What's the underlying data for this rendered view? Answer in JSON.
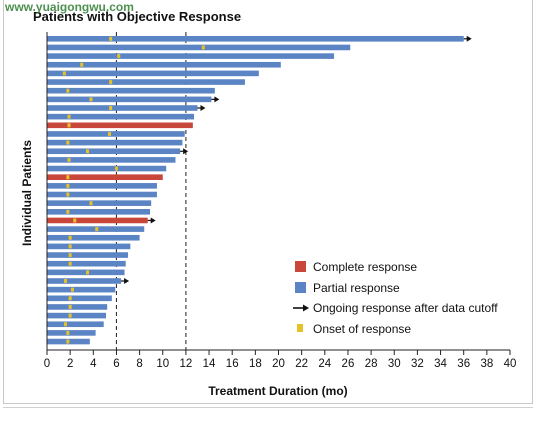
{
  "watermark": "www.yuaigongwu.com",
  "colors": {
    "complete": "#c8473a",
    "partial": "#5b84c4",
    "onset": "#e6c229",
    "axis": "#222222",
    "arrow": "#111111"
  },
  "legend": {
    "complete": "Complete response",
    "partial": "Partial response",
    "ongoing": "Ongoing response after data cutoff",
    "onset": "Onset of response"
  },
  "chart_data": {
    "type": "bar",
    "orientation": "horizontal",
    "title": "Patients with Objective Response",
    "xlabel": "Treatment Duration (mo)",
    "ylabel": "Individual Patients",
    "xlim": [
      0,
      40
    ],
    "xticks": [
      0,
      2,
      4,
      6,
      8,
      10,
      12,
      14,
      16,
      18,
      20,
      22,
      24,
      26,
      28,
      30,
      32,
      34,
      36,
      38,
      40
    ],
    "reference_lines_x": [
      6,
      12
    ],
    "patients": [
      {
        "duration": 36.0,
        "type": "partial",
        "onset": 5.5,
        "ongoing": true
      },
      {
        "duration": 26.2,
        "type": "partial",
        "onset": 13.5,
        "ongoing": false
      },
      {
        "duration": 24.8,
        "type": "partial",
        "onset": 6.2,
        "ongoing": false
      },
      {
        "duration": 20.2,
        "type": "partial",
        "onset": 3.0,
        "ongoing": false
      },
      {
        "duration": 18.3,
        "type": "partial",
        "onset": 1.5,
        "ongoing": false
      },
      {
        "duration": 17.1,
        "type": "partial",
        "onset": 5.5,
        "ongoing": false
      },
      {
        "duration": 14.5,
        "type": "partial",
        "onset": 1.8,
        "ongoing": false
      },
      {
        "duration": 14.2,
        "type": "partial",
        "onset": 3.8,
        "ongoing": true
      },
      {
        "duration": 13.0,
        "type": "partial",
        "onset": 5.5,
        "ongoing": true
      },
      {
        "duration": 12.7,
        "type": "partial",
        "onset": 1.9,
        "ongoing": false
      },
      {
        "duration": 12.6,
        "type": "complete",
        "onset": 1.9,
        "ongoing": false
      },
      {
        "duration": 11.9,
        "type": "partial",
        "onset": 5.4,
        "ongoing": false
      },
      {
        "duration": 11.7,
        "type": "partial",
        "onset": 1.8,
        "ongoing": false
      },
      {
        "duration": 11.5,
        "type": "partial",
        "onset": 3.5,
        "ongoing": true
      },
      {
        "duration": 11.1,
        "type": "partial",
        "onset": 1.9,
        "ongoing": false
      },
      {
        "duration": 10.3,
        "type": "partial",
        "onset": 6.0,
        "ongoing": false
      },
      {
        "duration": 10.0,
        "type": "complete",
        "onset": 1.8,
        "ongoing": false
      },
      {
        "duration": 9.5,
        "type": "partial",
        "onset": 1.8,
        "ongoing": false
      },
      {
        "duration": 9.5,
        "type": "partial",
        "onset": 1.8,
        "ongoing": false
      },
      {
        "duration": 9.0,
        "type": "partial",
        "onset": 3.8,
        "ongoing": false
      },
      {
        "duration": 8.9,
        "type": "partial",
        "onset": 1.8,
        "ongoing": false
      },
      {
        "duration": 8.7,
        "type": "complete",
        "onset": 2.4,
        "ongoing": true
      },
      {
        "duration": 8.4,
        "type": "partial",
        "onset": 4.3,
        "ongoing": false
      },
      {
        "duration": 8.0,
        "type": "partial",
        "onset": 2.0,
        "ongoing": false
      },
      {
        "duration": 7.2,
        "type": "partial",
        "onset": 2.0,
        "ongoing": false
      },
      {
        "duration": 7.0,
        "type": "partial",
        "onset": 2.0,
        "ongoing": false
      },
      {
        "duration": 6.8,
        "type": "partial",
        "onset": 2.0,
        "ongoing": false
      },
      {
        "duration": 6.7,
        "type": "partial",
        "onset": 3.5,
        "ongoing": false
      },
      {
        "duration": 6.4,
        "type": "partial",
        "onset": 1.6,
        "ongoing": true
      },
      {
        "duration": 5.9,
        "type": "partial",
        "onset": 2.2,
        "ongoing": false
      },
      {
        "duration": 5.6,
        "type": "partial",
        "onset": 2.0,
        "ongoing": false
      },
      {
        "duration": 5.2,
        "type": "partial",
        "onset": 2.0,
        "ongoing": false
      },
      {
        "duration": 5.1,
        "type": "partial",
        "onset": 2.0,
        "ongoing": false
      },
      {
        "duration": 4.9,
        "type": "partial",
        "onset": 1.6,
        "ongoing": false
      },
      {
        "duration": 4.2,
        "type": "partial",
        "onset": 1.8,
        "ongoing": false
      },
      {
        "duration": 3.7,
        "type": "partial",
        "onset": 1.8,
        "ongoing": false
      }
    ]
  }
}
